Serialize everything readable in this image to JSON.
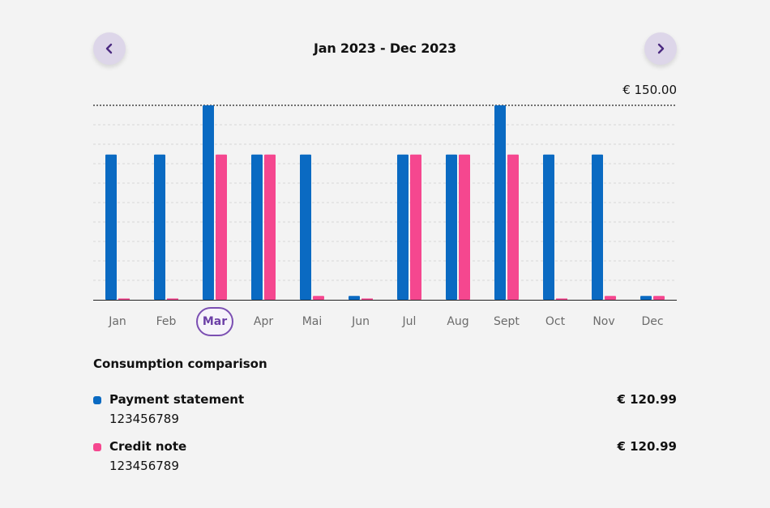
{
  "header": {
    "prev_icon": "chevron-left-icon",
    "next_icon": "chevron-right-icon",
    "period": "Jan 2023 - Dec 2023"
  },
  "chart_data": {
    "type": "bar",
    "categories": [
      "Jan",
      "Feb",
      "Mar",
      "Apr",
      "Mai",
      "Jun",
      "Jul",
      "Aug",
      "Sept",
      "Oct",
      "Nov",
      "Dec"
    ],
    "selected_category": "Mar",
    "max_label": "€ 150.00",
    "ylim": [
      0,
      150
    ],
    "grid": true,
    "series": [
      {
        "name": "Payment statement",
        "color": "#0a6ac2",
        "values": [
          112,
          112,
          150,
          112,
          112,
          3,
          112,
          112,
          150,
          112,
          112,
          3
        ]
      },
      {
        "name": "Credit note",
        "color": "#f5478f",
        "values": [
          1,
          1,
          112,
          112,
          3,
          1,
          112,
          112,
          112,
          1,
          3,
          3
        ]
      }
    ]
  },
  "comparison": {
    "title": "Consumption comparison",
    "items": [
      {
        "name": "Payment statement",
        "id": "123456789",
        "amount": "€ 120.99",
        "color": "#0a6ac2"
      },
      {
        "name": "Credit note",
        "id": "123456789",
        "amount": "€ 120.99",
        "color": "#f5478f"
      }
    ]
  }
}
